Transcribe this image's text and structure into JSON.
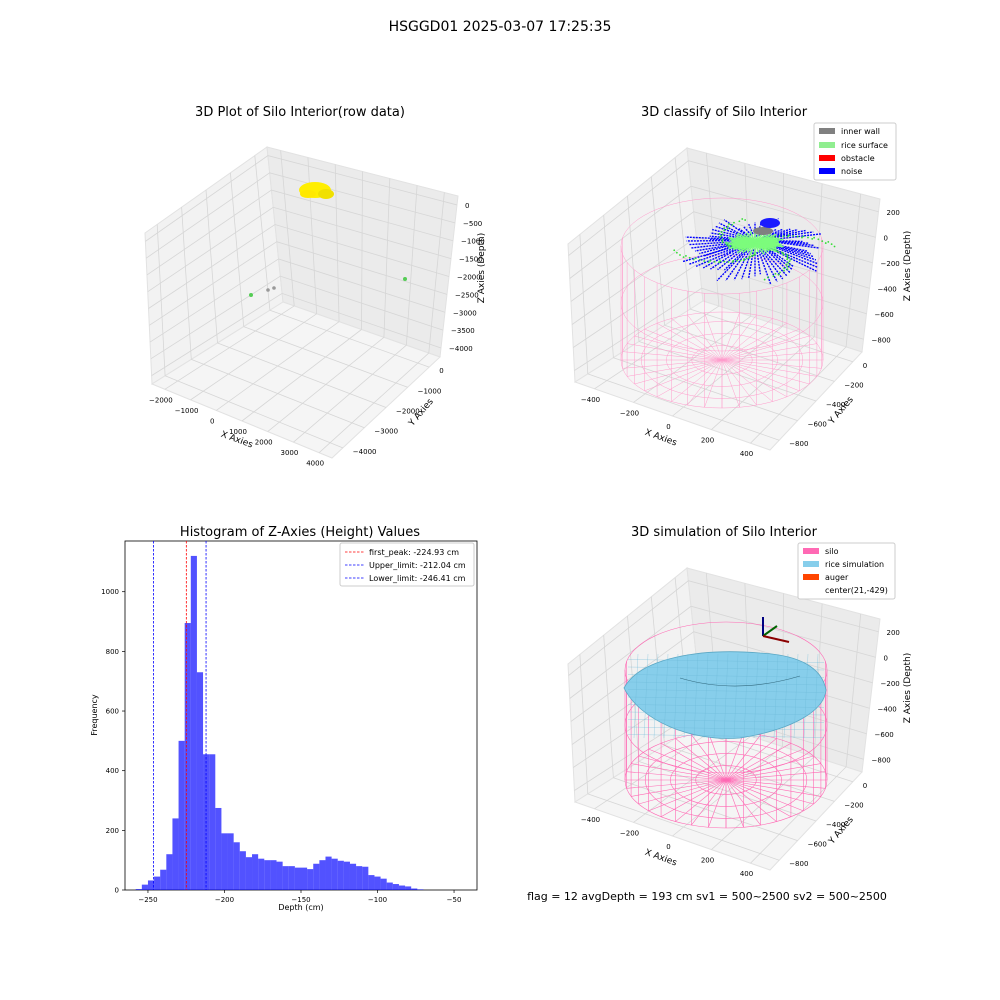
{
  "figure_title": "HSGGD01 2025-03-07 17:25:35",
  "status_line": "flag = 12   avgDepth = 193 cm  sv1 = 500~2500  sv2 = 500~2500",
  "colors": {
    "inner_wall": "#808080",
    "rice_surface": "#90ee90",
    "obstacle": "#ff0000",
    "noise": "#0000ff",
    "silo": "#ff69b4",
    "rice_simulation": "#87ceeb",
    "auger": "#ff4500",
    "hist_bar": "#0000ff",
    "first_peak_line": "#ff0000",
    "limit_line": "#0000ff",
    "raw_points": "#ffee00"
  },
  "chart_data": [
    {
      "type": "scatter3d",
      "title": "3D Plot of Silo Interior(row data)",
      "xlabel": "X Axies",
      "ylabel": "Y Axies",
      "zlabel": "Z Axies (Depth)",
      "x_ticks": [
        "−2000",
        "−1000",
        "0",
        "1000",
        "2000",
        "3000",
        "4000"
      ],
      "y_ticks": [
        "0",
        "−1000",
        "−2000",
        "−3000",
        "−4000"
      ],
      "z_ticks": [
        "0",
        "−500",
        "−1000",
        "−1500",
        "−2000",
        "−2500",
        "−3000",
        "−3500",
        "−4000"
      ]
    },
    {
      "type": "scatter3d",
      "title": "3D classify of Silo Interior",
      "xlabel": "X Axies",
      "ylabel": "Y Axies",
      "zlabel": "Z Axies (Depth)",
      "x_ticks": [
        "−400",
        "−200",
        "0",
        "200",
        "400"
      ],
      "y_ticks": [
        "0",
        "−200",
        "−400",
        "−600",
        "−800"
      ],
      "z_ticks": [
        "200",
        "0",
        "−200",
        "−400",
        "−600",
        "−800"
      ],
      "legend": [
        "inner wall",
        "rice surface",
        "obstacle",
        "noise"
      ],
      "legend_position": "top-right"
    },
    {
      "type": "bar",
      "title": "Histogram of Z-Axies (Height) Values",
      "xlabel": "Depth (cm)",
      "ylabel": "Frequency",
      "xlim": [
        -265,
        -35
      ],
      "ylim": [
        0,
        1170
      ],
      "x_ticks": [
        -250,
        -200,
        -150,
        -100,
        -50
      ],
      "x_tick_labels": [
        "−250",
        "−200",
        "−150",
        "−100",
        "−50"
      ],
      "y_ticks": [
        0,
        200,
        400,
        600,
        800,
        1000
      ],
      "bin_start": -258,
      "bin_width": 4,
      "values": [
        3,
        18,
        32,
        45,
        68,
        120,
        240,
        500,
        895,
        1120,
        730,
        455,
        455,
        275,
        190,
        190,
        160,
        130,
        110,
        120,
        105,
        100,
        100,
        95,
        80,
        80,
        75,
        75,
        70,
        88,
        100,
        112,
        105,
        98,
        95,
        88,
        80,
        78,
        50,
        45,
        38,
        25,
        20,
        15,
        12,
        5,
        2
      ],
      "lines": [
        {
          "label": "first_peak: -224.93 cm",
          "x": -224.93,
          "color": "#ff0000"
        },
        {
          "label": "Upper_limit: -212.04 cm",
          "x": -212.04,
          "color": "#0000ff"
        },
        {
          "label": "Lower_limit: -246.41 cm",
          "x": -246.41,
          "color": "#0000ff"
        }
      ],
      "legend_position": "top-right"
    },
    {
      "type": "surface3d",
      "title": "3D simulation of Silo Interior",
      "xlabel": "X Axies",
      "ylabel": "Y Axies",
      "zlabel": "Z Axies (Depth)",
      "x_ticks": [
        "−400",
        "−200",
        "0",
        "200",
        "400"
      ],
      "y_ticks": [
        "0",
        "−200",
        "−400",
        "−600",
        "−800"
      ],
      "z_ticks": [
        "200",
        "0",
        "−200",
        "−400",
        "−600",
        "−800"
      ],
      "legend": [
        "silo",
        "rice simulation",
        "auger",
        "center(21,-429)"
      ],
      "legend_position": "top-right"
    }
  ]
}
